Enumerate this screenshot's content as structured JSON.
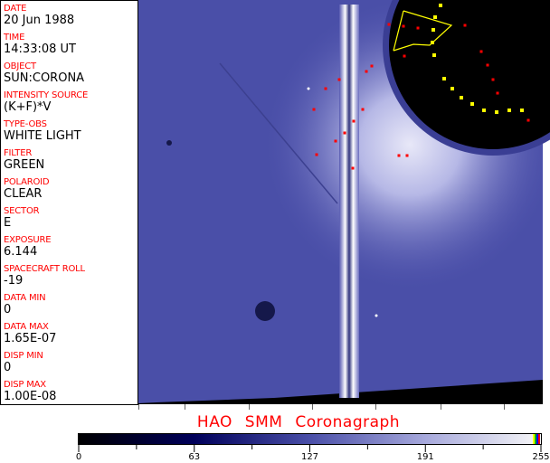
{
  "fields": [
    {
      "label": "DATE",
      "value": "20 Jun 1988"
    },
    {
      "label": "TIME",
      "value": "14:33:08 UT"
    },
    {
      "label": "OBJECT",
      "value": "SUN:CORONA"
    },
    {
      "label": "INTENSITY SOURCE",
      "value": "(K+F)*V"
    },
    {
      "label": "TYPE-OBS",
      "value": "WHITE LIGHT"
    },
    {
      "label": "FILTER",
      "value": "GREEN"
    },
    {
      "label": "POLAROID",
      "value": "CLEAR"
    },
    {
      "label": "SECTOR",
      "value": "E"
    },
    {
      "label": "EXPOSURE",
      "value": "6.144"
    },
    {
      "label": "SPACECRAFT ROLL",
      "value": "-19"
    },
    {
      "label": "DATA MIN",
      "value": "0"
    },
    {
      "label": "DATA MAX",
      "value": "1.65E-07"
    },
    {
      "label": "DISP MIN",
      "value": "0"
    },
    {
      "label": "DISP MAX",
      "value": "1.00E-08"
    }
  ],
  "title": "HAO SMM Coronagraph",
  "colorbar": {
    "ticks": [
      "0",
      "63",
      "127",
      "191",
      "255"
    ],
    "colors": [
      "#000000",
      "#00005a",
      "#4a4fa8",
      "#a7a9dc",
      "#f8f8f8"
    ],
    "end_colors": [
      "#ffff00",
      "#00c000",
      "#0000ff",
      "#ff0000"
    ]
  },
  "colors": {
    "label": "#ff0000",
    "background": "#4a4fa8",
    "occulter": "#000000",
    "overlay_points": "#ffff00"
  }
}
